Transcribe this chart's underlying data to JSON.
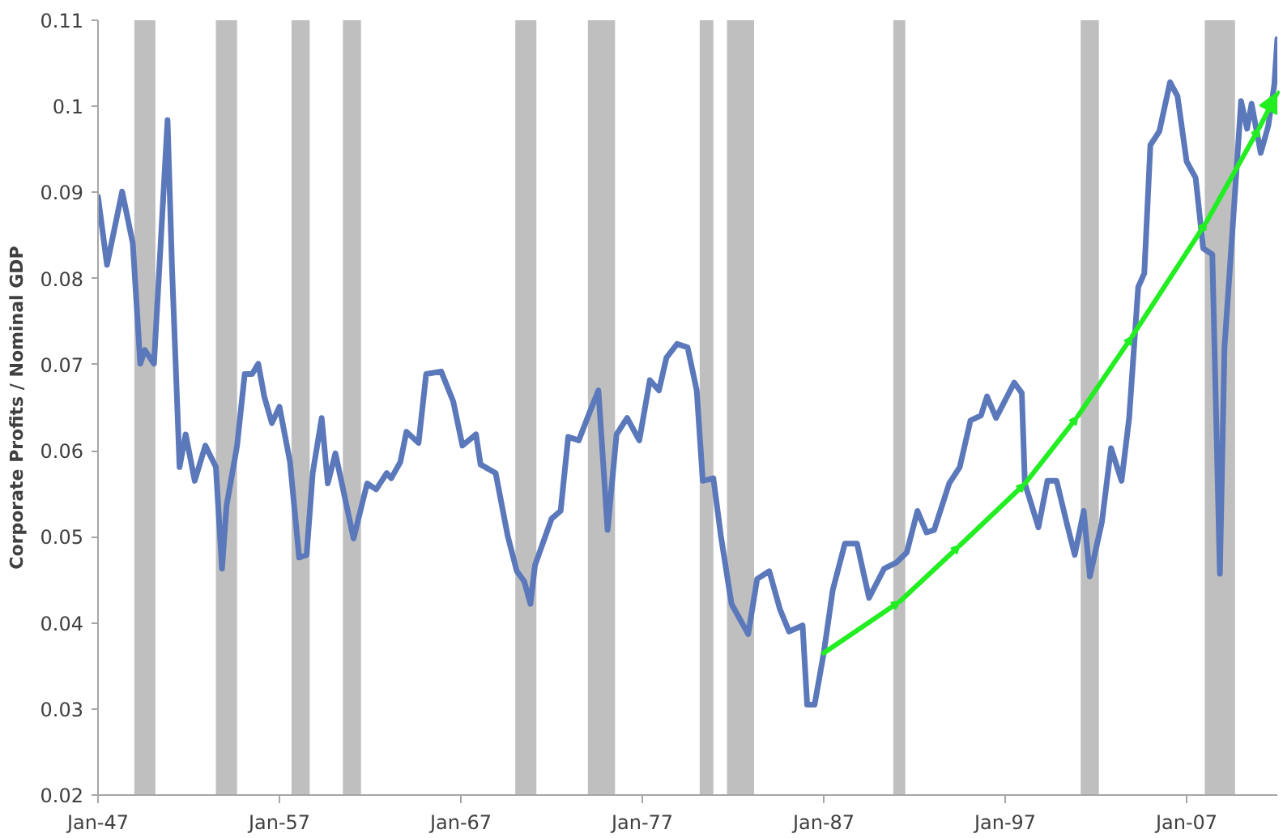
{
  "chart_data": {
    "type": "line",
    "ylabel": "Corporate Profits / Nominal GDP",
    "xlim": [
      "1947-01",
      "2012-01"
    ],
    "ylim": [
      0.02,
      0.11
    ],
    "xticks": [
      {
        "value": "1947-01",
        "label": "Jan-47"
      },
      {
        "value": "1957-01",
        "label": "Jan-57"
      },
      {
        "value": "1967-01",
        "label": "Jan-67"
      },
      {
        "value": "1977-01",
        "label": "Jan-77"
      },
      {
        "value": "1987-01",
        "label": "Jan-87"
      },
      {
        "value": "1997-01",
        "label": "Jan-97"
      },
      {
        "value": "2007-01",
        "label": "Jan-07"
      }
    ],
    "yticks": [
      0.02,
      0.03,
      0.04,
      0.05,
      0.06,
      0.07,
      0.08,
      0.09,
      0.1,
      0.11
    ],
    "grid": false,
    "marker": "none",
    "line_style": "solid",
    "bands": [
      {
        "axis": "x",
        "from": "1949-01",
        "to": "1950-03",
        "color": "#bfbfbf"
      },
      {
        "axis": "x",
        "from": "1953-07",
        "to": "1954-09",
        "color": "#bfbfbf"
      },
      {
        "axis": "x",
        "from": "1957-09",
        "to": "1958-09",
        "color": "#bfbfbf"
      },
      {
        "axis": "x",
        "from": "1960-07",
        "to": "1961-07",
        "color": "#bfbfbf"
      },
      {
        "axis": "x",
        "from": "1970-01",
        "to": "1971-03",
        "color": "#bfbfbf"
      },
      {
        "axis": "x",
        "from": "1974-01",
        "to": "1975-07",
        "color": "#bfbfbf"
      },
      {
        "axis": "x",
        "from": "1980-03",
        "to": "1980-12",
        "color": "#bfbfbf"
      },
      {
        "axis": "x",
        "from": "1981-09",
        "to": "1983-03",
        "color": "#bfbfbf"
      },
      {
        "axis": "x",
        "from": "1990-11",
        "to": "1991-07",
        "color": "#bfbfbf"
      },
      {
        "axis": "x",
        "from": "2001-03",
        "to": "2002-03",
        "color": "#bfbfbf"
      },
      {
        "axis": "x",
        "from": "2008-01",
        "to": "2009-09",
        "color": "#bfbfbf"
      }
    ],
    "series": [
      {
        "color": "#5b78bb",
        "x": [
          "1947-01",
          "1947-07",
          "1948-05",
          "1948-12",
          "1949-05",
          "1949-08",
          "1950-02",
          "1950-11",
          "1951-02",
          "1951-07",
          "1951-11",
          "1952-05",
          "1952-12",
          "1953-07",
          "1953-11",
          "1954-02",
          "1954-09",
          "1955-02",
          "1955-07",
          "1955-11",
          "1956-03",
          "1956-08",
          "1957-01",
          "1957-08",
          "1958-02",
          "1958-07",
          "1958-11",
          "1959-05",
          "1959-09",
          "1960-02",
          "1961-02",
          "1961-11",
          "1962-05",
          "1962-12",
          "1963-03",
          "1963-09",
          "1964-01",
          "1964-09",
          "1965-02",
          "1965-12",
          "1966-08",
          "1967-02",
          "1967-11",
          "1968-02",
          "1968-12",
          "1969-08",
          "1970-02",
          "1970-07",
          "1970-11",
          "1971-02",
          "1972-01",
          "1972-07",
          "1972-12",
          "1973-07",
          "1974-02",
          "1974-08",
          "1975-02",
          "1975-08",
          "1976-03",
          "1976-11",
          "1977-06",
          "1977-12",
          "1978-05",
          "1978-12",
          "1979-07",
          "1980-01",
          "1980-05",
          "1980-12",
          "1981-05",
          "1981-12",
          "1982-11",
          "1983-05",
          "1984-01",
          "1984-08",
          "1985-02",
          "1985-11",
          "1986-02",
          "1986-07",
          "1987-01",
          "1987-07",
          "1988-03",
          "1988-11",
          "1989-07",
          "1990-05",
          "1991-01",
          "1991-08",
          "1992-03",
          "1992-09",
          "1993-02",
          "1993-12",
          "1994-07",
          "1995-02",
          "1995-09",
          "1996-01",
          "1996-07",
          "1997-07",
          "1997-12",
          "1998-02",
          "1998-11",
          "1999-05",
          "1999-11",
          "2000-06",
          "2000-11",
          "2001-05",
          "2001-09",
          "2002-05",
          "2002-11",
          "2003-06",
          "2003-11",
          "2004-05",
          "2004-09",
          "2005-01",
          "2005-07",
          "2006-02",
          "2006-07",
          "2007-01",
          "2007-07",
          "2007-12",
          "2008-06",
          "2008-11",
          "2009-02",
          "2009-08",
          "2010-01",
          "2010-05",
          "2010-08",
          "2011-02",
          "2011-07",
          "2011-11",
          "2012-01"
        ],
        "values": [
          0.0895,
          0.0816,
          0.0901,
          0.0841,
          0.0701,
          0.0717,
          0.0701,
          0.0984,
          0.0809,
          0.0581,
          0.0619,
          0.0565,
          0.0606,
          0.0581,
          0.0463,
          0.0536,
          0.0606,
          0.0689,
          0.0689,
          0.0701,
          0.0663,
          0.0632,
          0.0651,
          0.0587,
          0.0476,
          0.0479,
          0.0574,
          0.0638,
          0.0562,
          0.0597,
          0.0498,
          0.0562,
          0.0555,
          0.0574,
          0.0568,
          0.0587,
          0.0622,
          0.0609,
          0.0689,
          0.0692,
          0.0657,
          0.0606,
          0.0619,
          0.0584,
          0.0574,
          0.0501,
          0.046,
          0.0448,
          0.0422,
          0.0467,
          0.0521,
          0.053,
          0.0616,
          0.0612,
          0.0644,
          0.067,
          0.0508,
          0.0619,
          0.0638,
          0.0612,
          0.0682,
          0.067,
          0.0708,
          0.0724,
          0.072,
          0.067,
          0.0565,
          0.0568,
          0.0501,
          0.0422,
          0.0387,
          0.0451,
          0.046,
          0.0416,
          0.039,
          0.0397,
          0.0305,
          0.0305,
          0.0365,
          0.0438,
          0.0492,
          0.0492,
          0.0429,
          0.0463,
          0.047,
          0.0482,
          0.053,
          0.0505,
          0.0508,
          0.0562,
          0.0581,
          0.0635,
          0.0641,
          0.0663,
          0.0638,
          0.0679,
          0.0667,
          0.0562,
          0.0511,
          0.0565,
          0.0565,
          0.0514,
          0.0479,
          0.053,
          0.0454,
          0.0517,
          0.0603,
          0.0565,
          0.0638,
          0.079,
          0.0806,
          0.0955,
          0.0971,
          0.1028,
          0.1012,
          0.0936,
          0.0917,
          0.0835,
          0.0828,
          0.0457,
          0.072,
          0.0873,
          0.1006,
          0.0974,
          0.1003,
          0.0946,
          0.0977,
          0.1025,
          0.1078
        ]
      }
    ]
  }
}
